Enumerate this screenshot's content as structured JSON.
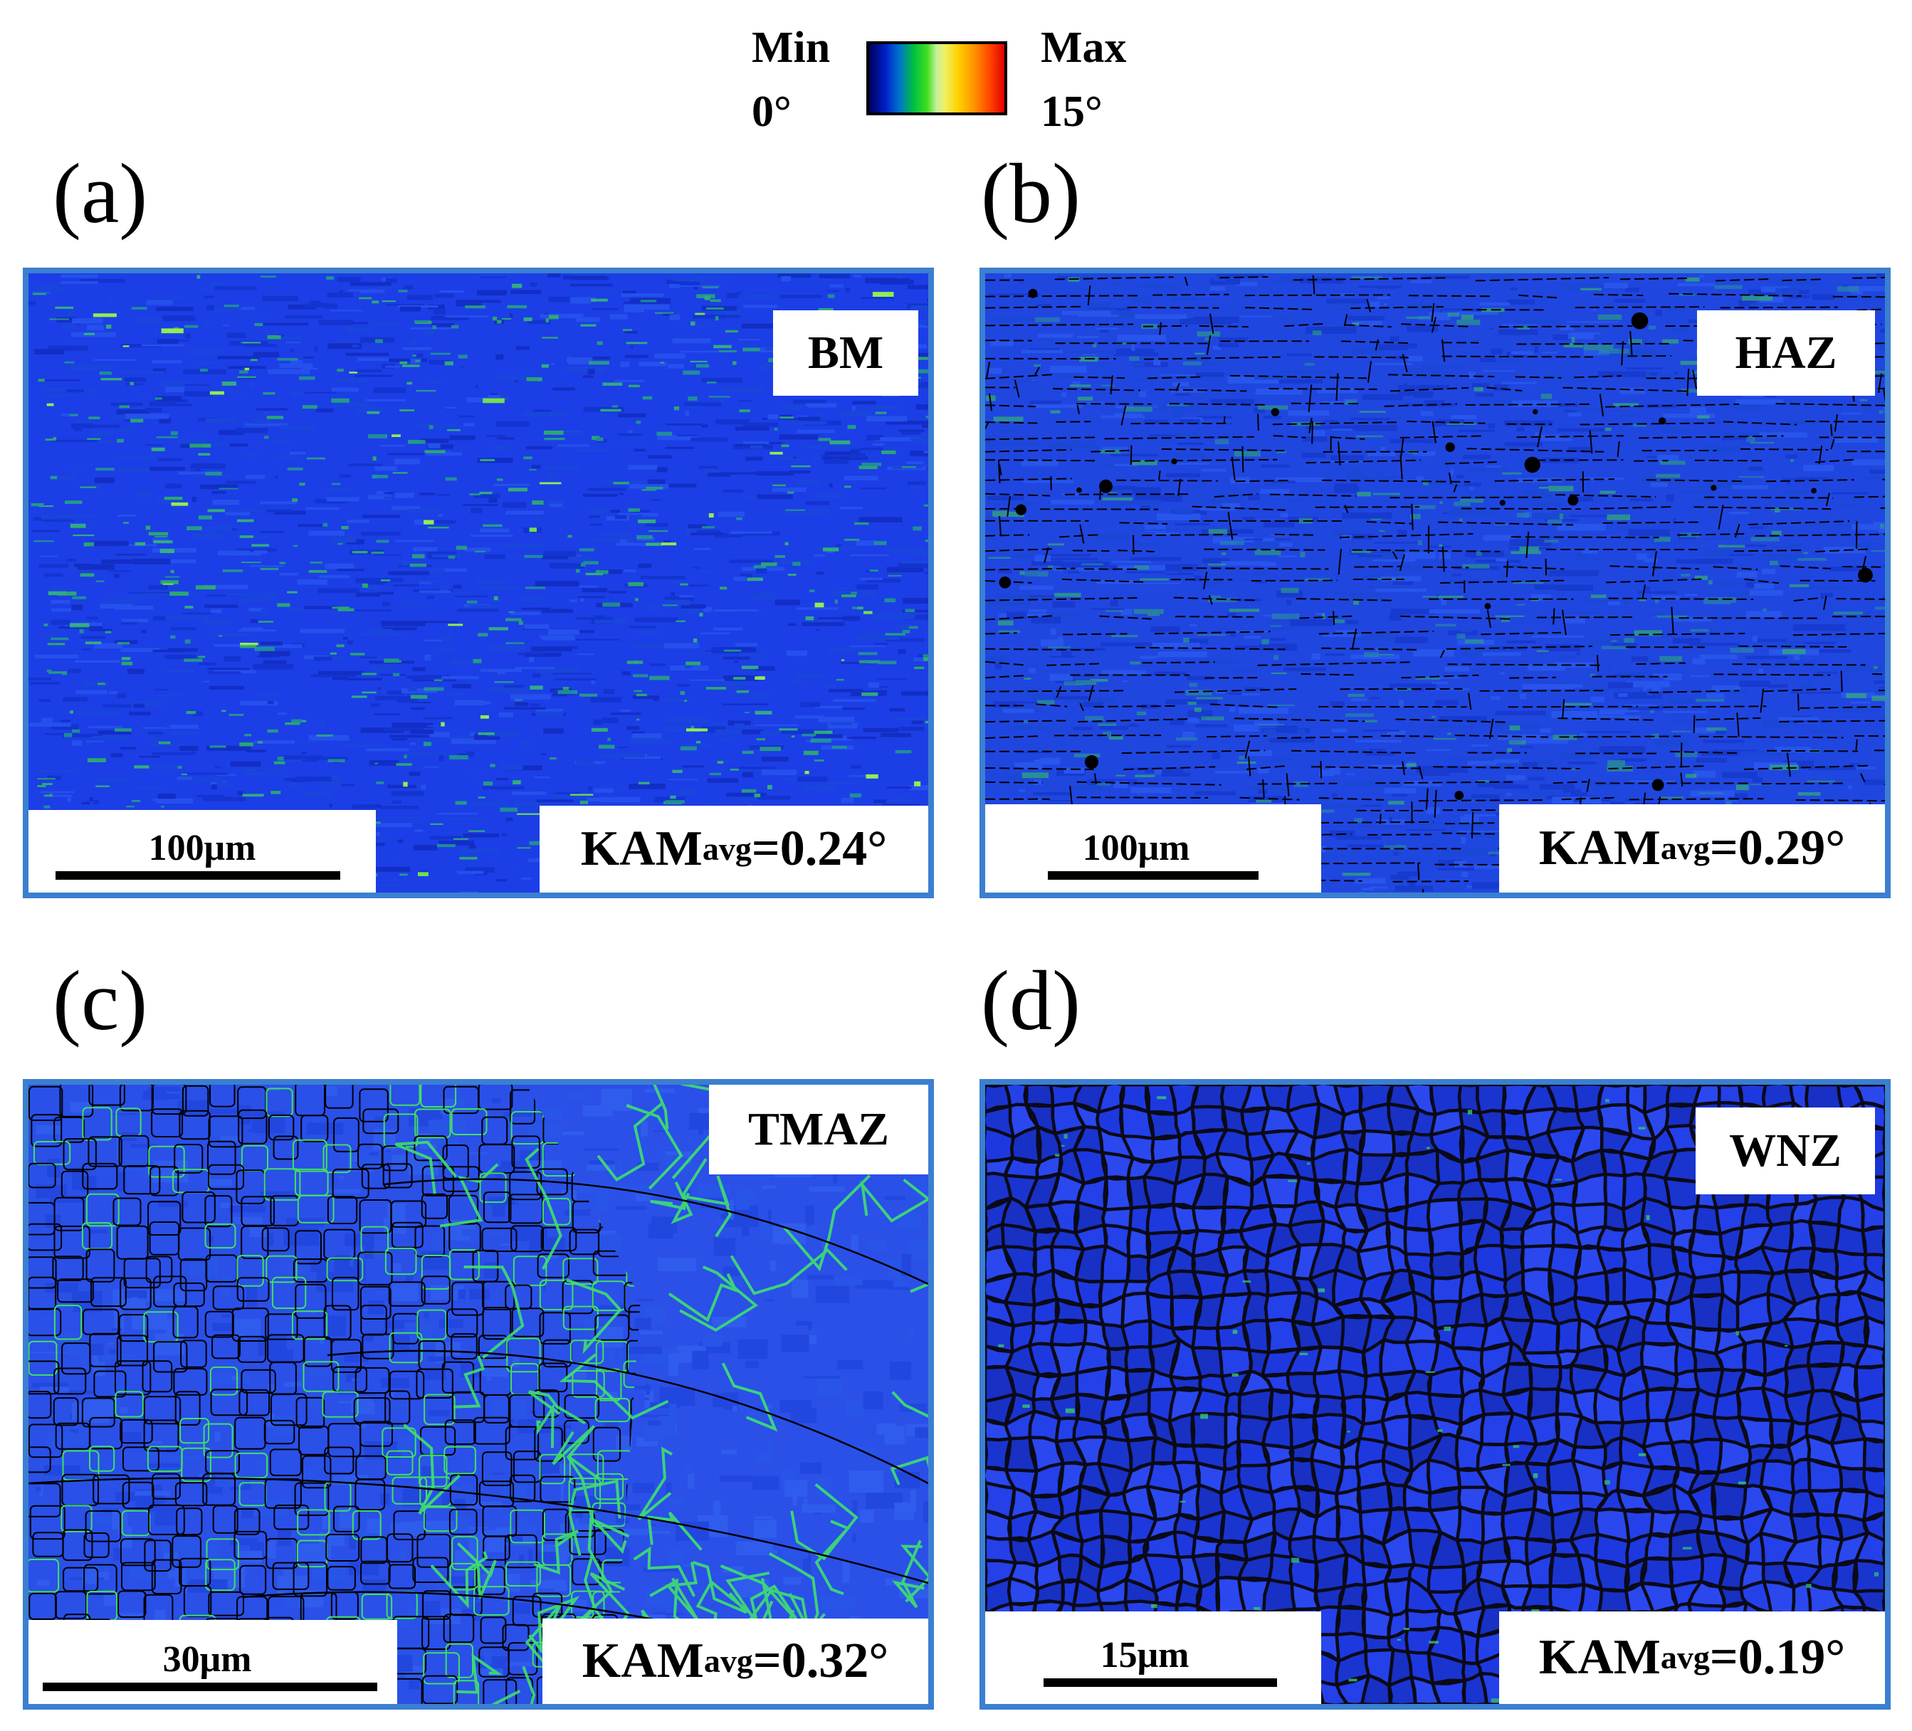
{
  "legend": {
    "min_label": "Min",
    "min_value": "0°",
    "max_label": "Max",
    "max_value": "15°",
    "colors": [
      "#00005a",
      "#0020c8",
      "#00c040",
      "#f0f060",
      "#ffd000",
      "#ff4000",
      "#e00000"
    ]
  },
  "panels": [
    {
      "letter": "(a)",
      "zone": "BM",
      "scale": "100μm",
      "kam_prefix": "KAM",
      "kam_sub": "avg",
      "kam_value": "=0.24°",
      "kam_avg_deg": 0.24,
      "texture": "elongated-bands"
    },
    {
      "letter": "(b)",
      "zone": "HAZ",
      "scale": "100μm",
      "kam_prefix": "KAM",
      "kam_sub": "avg",
      "kam_value": "=0.29°",
      "kam_avg_deg": 0.29,
      "texture": "elongated-grains-dashed-boundaries"
    },
    {
      "letter": "(c)",
      "zone": "TMAZ",
      "scale": "30μm",
      "kam_prefix": "KAM",
      "kam_sub": "avg",
      "kam_value": "=0.32°",
      "kam_avg_deg": 0.32,
      "texture": "mixed-grains-green-boundaries"
    },
    {
      "letter": "(d)",
      "zone": "WNZ",
      "scale": "15μm",
      "kam_prefix": "KAM",
      "kam_sub": "avg",
      "kam_value": "=0.19°",
      "kam_avg_deg": 0.19,
      "texture": "equiaxed-fine-grains"
    }
  ],
  "colors": {
    "panel_border": "#3b7fd0",
    "map_base": "#1a3fe0",
    "low_misorientation_green": "#30e040"
  }
}
